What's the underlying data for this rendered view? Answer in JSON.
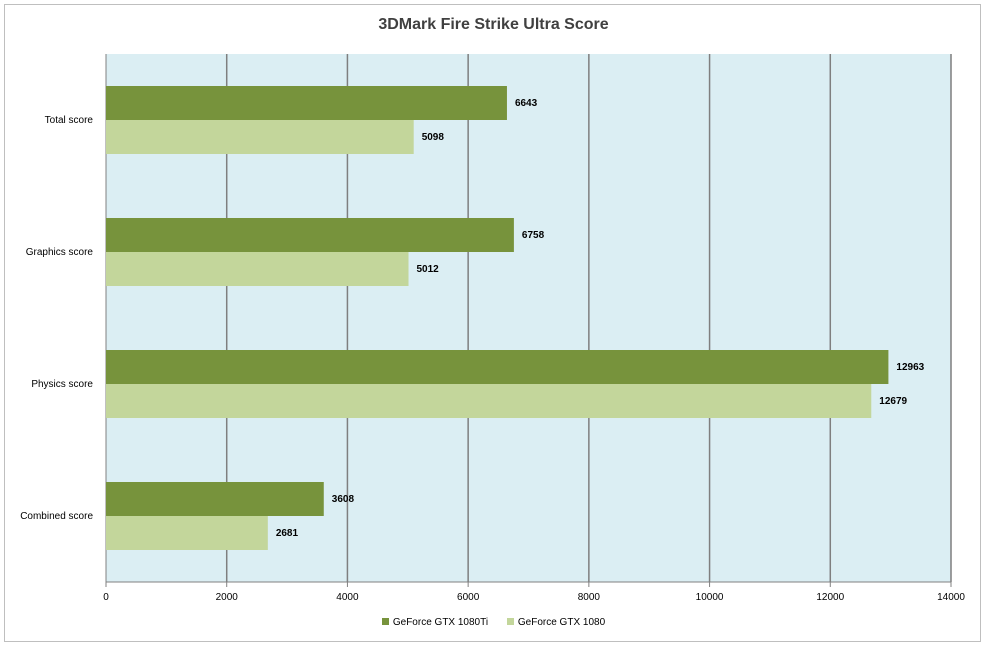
{
  "chart_data": {
    "type": "bar",
    "orientation": "horizontal",
    "title": "3DMark Fire Strike Ultra Score",
    "categories": [
      "Total score",
      "Graphics score",
      "Physics score",
      "Combined score"
    ],
    "series": [
      {
        "name": "GeForce GTX 1080Ti",
        "color": "#77933c",
        "values": [
          6643,
          6758,
          12963,
          3608
        ]
      },
      {
        "name": "GeForce GTX 1080",
        "color": "#c3d69b",
        "values": [
          5098,
          5012,
          12679,
          2681
        ]
      }
    ],
    "xlim": [
      0,
      14000
    ],
    "x_ticks": [
      0,
      2000,
      4000,
      6000,
      8000,
      10000,
      12000,
      14000
    ],
    "grid": true,
    "plot_background": "#dbeef3",
    "data_labels": true,
    "legend": "bottom"
  }
}
